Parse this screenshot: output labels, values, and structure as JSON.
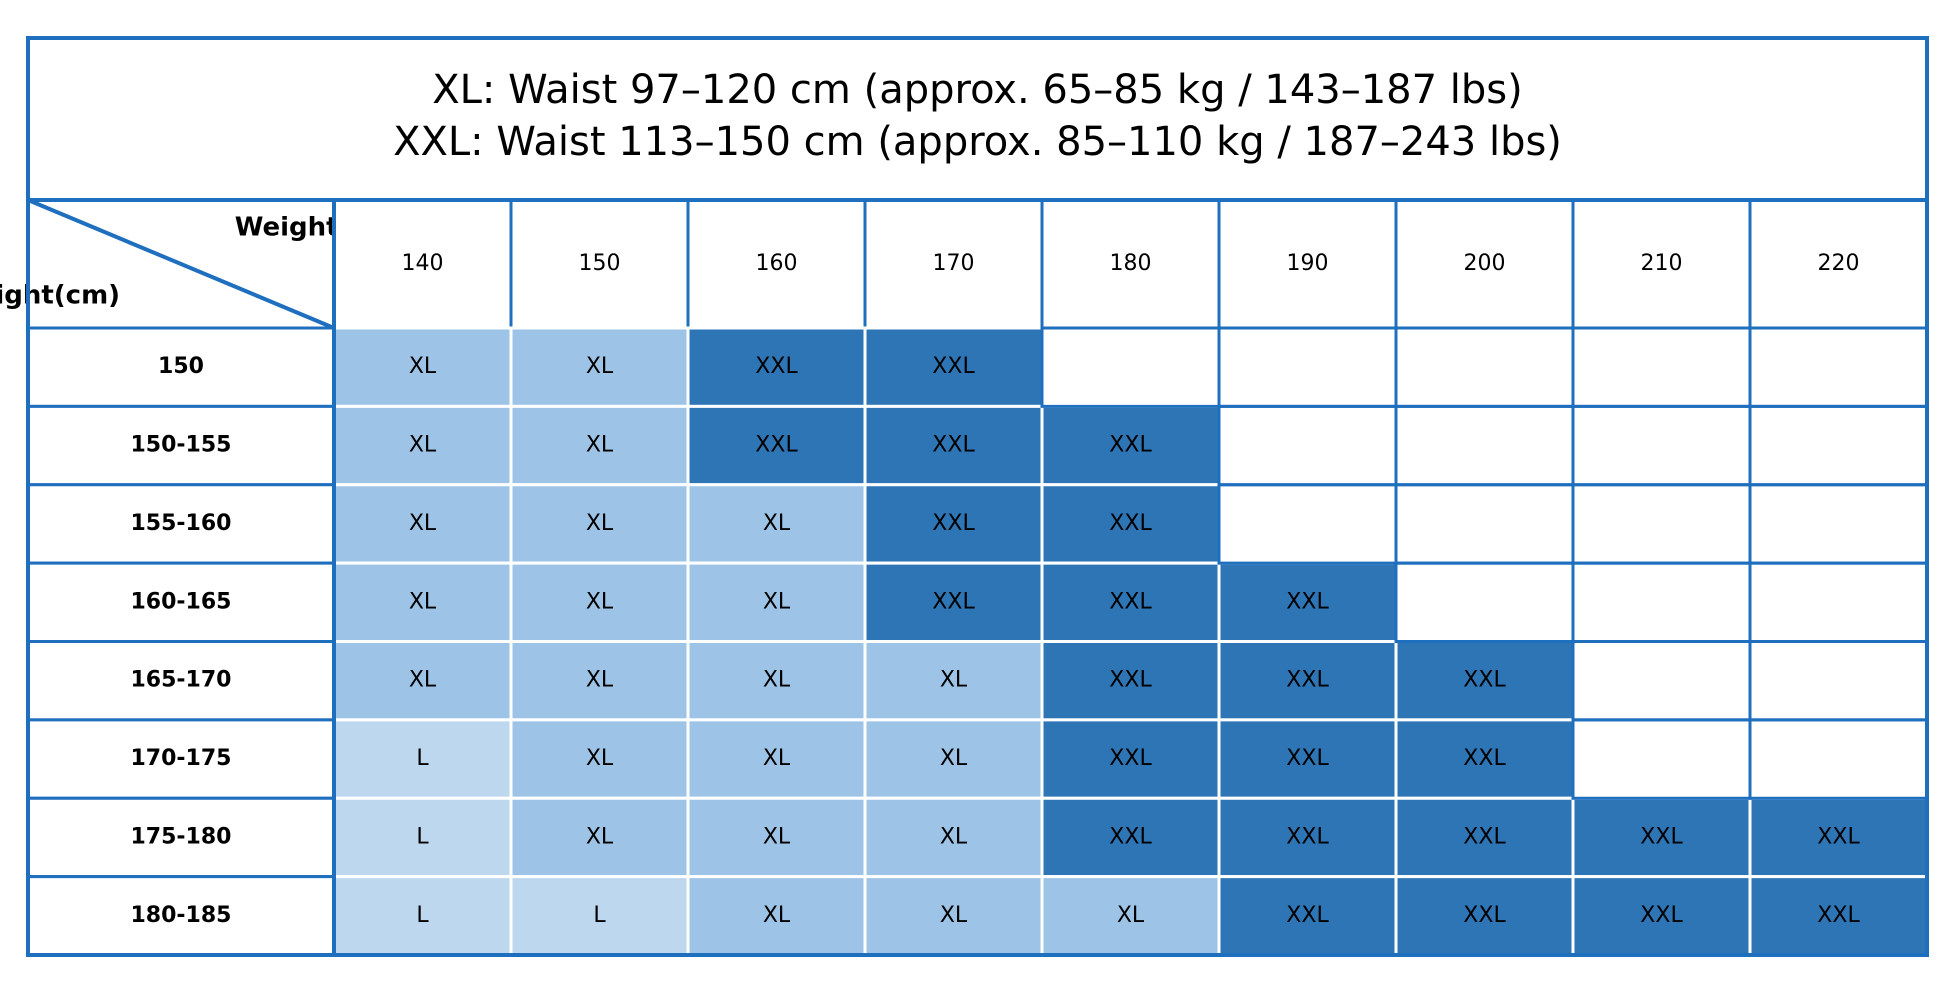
{
  "table": {
    "title": [
      "XL: Waist 97–120 cm (approx. 65–85 kg / 143–187 lbs)",
      "XXL: Waist 113–150 cm (approx. 85–110 kg / 187–243 lbs)"
    ],
    "column_axis_label": "Weight(lbs)",
    "row_axis_label": "Height(cm)",
    "columns": [
      "140",
      "150",
      "160",
      "170",
      "180",
      "190",
      "200",
      "210",
      "220"
    ],
    "rows": [
      {
        "label": "150",
        "cells": [
          "XL",
          "XL",
          "XXL",
          "XXL",
          null,
          null,
          null,
          null,
          null
        ]
      },
      {
        "label": "150-155",
        "cells": [
          "XL",
          "XL",
          "XXL",
          "XXL",
          "XXL",
          null,
          null,
          null,
          null
        ]
      },
      {
        "label": "155-160",
        "cells": [
          "XL",
          "XL",
          "XL",
          "XXL",
          "XXL",
          null,
          null,
          null,
          null
        ]
      },
      {
        "label": "160-165",
        "cells": [
          "XL",
          "XL",
          "XL",
          "XXL",
          "XXL",
          "XXL",
          null,
          null,
          null
        ]
      },
      {
        "label": "165-170",
        "cells": [
          "XL",
          "XL",
          "XL",
          "XL",
          "XXL",
          "XXL",
          "XXL",
          null,
          null
        ]
      },
      {
        "label": "170-175",
        "cells": [
          "L",
          "XL",
          "XL",
          "XL",
          "XXL",
          "XXL",
          "XXL",
          null,
          null
        ]
      },
      {
        "label": "175-180",
        "cells": [
          "L",
          "XL",
          "XL",
          "XL",
          "XXL",
          "XXL",
          "XXL",
          "XXL",
          "XXL"
        ]
      },
      {
        "label": "180-185",
        "cells": [
          "L",
          "L",
          "XL",
          "XL",
          "XL",
          "XXL",
          "XXL",
          "XXL",
          "XXL"
        ]
      }
    ],
    "size_colors": {
      "L": "#bdd7ee",
      "XL": "#9dc3e6",
      "XXL": "#2e75b6"
    },
    "border_color": "#1f6fbf"
  }
}
